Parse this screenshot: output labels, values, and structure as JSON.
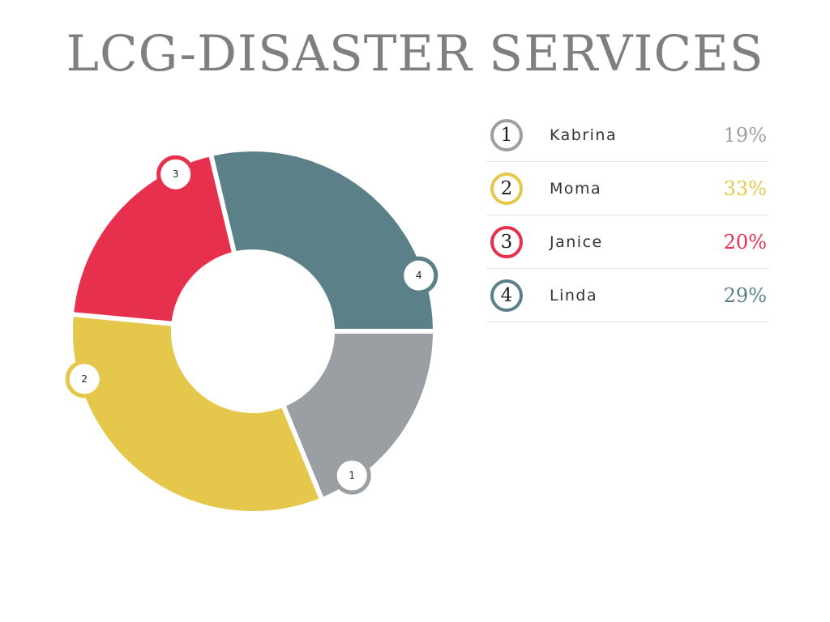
{
  "title": "LCG-DISASTER SERVICES",
  "chart_data": {
    "type": "pie",
    "donut": true,
    "title": "LCG-DISASTER SERVICES",
    "slices": [
      {
        "number": "1",
        "name": "Kabrina",
        "label": "19%",
        "value": 19,
        "color": "#9a9fa3"
      },
      {
        "number": "2",
        "name": "Moma",
        "label": "33%",
        "value": 33,
        "color": "#e4c74b"
      },
      {
        "number": "3",
        "name": "Janice",
        "label": "20%",
        "value": 20,
        "color": "#e6304d"
      },
      {
        "number": "4",
        "name": "Linda",
        "label": "29%",
        "value": 29,
        "color": "#5c8087"
      }
    ],
    "legend": "right"
  }
}
